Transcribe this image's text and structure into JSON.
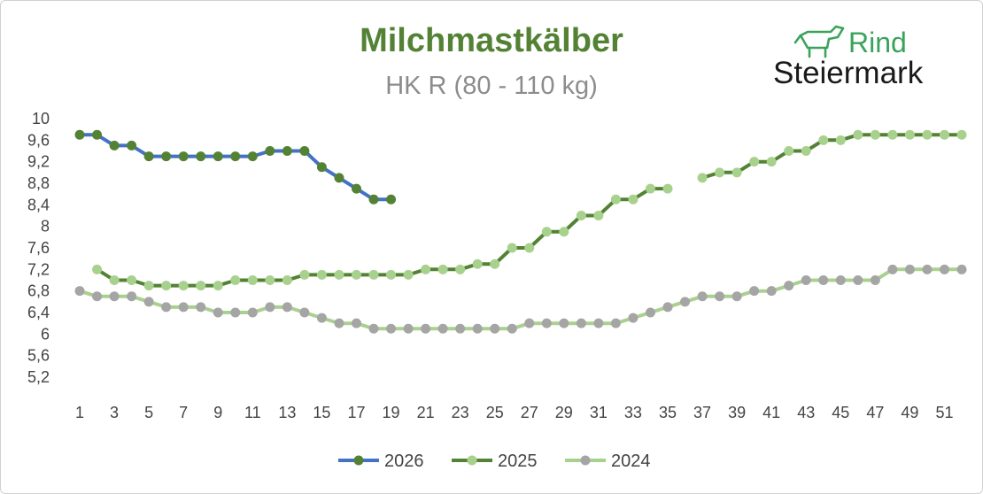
{
  "chart_data": {
    "type": "line",
    "title": "Milchmastkälber",
    "subtitle": "HK R (80 - 110 kg)",
    "xlabel": "",
    "ylabel": "",
    "ylim": [
      5.2,
      10
    ],
    "yticks": [
      "10",
      "9,6",
      "9,2",
      "8,8",
      "8,4",
      "8",
      "7,6",
      "7,2",
      "6,8",
      "6,4",
      "6",
      "5,6",
      "5,2"
    ],
    "xlim": [
      1,
      52
    ],
    "xticks": [
      "1",
      "3",
      "5",
      "7",
      "9",
      "11",
      "13",
      "15",
      "17",
      "19",
      "21",
      "23",
      "25",
      "27",
      "29",
      "31",
      "33",
      "35",
      "37",
      "39",
      "41",
      "43",
      "45",
      "47",
      "49",
      "51"
    ],
    "grid": false,
    "legend_position": "bottom",
    "series": [
      {
        "name": "2026",
        "line_color": "#4472c4",
        "marker_color": "#548235",
        "values": [
          9.7,
          9.7,
          9.5,
          9.5,
          9.3,
          9.3,
          9.3,
          9.3,
          9.3,
          9.3,
          9.3,
          9.4,
          9.4,
          9.4,
          9.1,
          8.9,
          8.7,
          8.5,
          8.5
        ]
      },
      {
        "name": "2025",
        "line_color": "#548235",
        "marker_color": "#a9d18e",
        "values": [
          null,
          7.2,
          7.0,
          7.0,
          6.9,
          6.9,
          6.9,
          6.9,
          6.9,
          7.0,
          7.0,
          7.0,
          7.0,
          7.1,
          7.1,
          7.1,
          7.1,
          7.1,
          7.1,
          7.1,
          7.2,
          7.2,
          7.2,
          7.3,
          7.3,
          7.6,
          7.6,
          7.9,
          7.9,
          8.2,
          8.2,
          8.5,
          8.5,
          8.7,
          8.7,
          null,
          8.9,
          9.0,
          9.0,
          9.2,
          9.2,
          9.4,
          9.4,
          9.6,
          9.6,
          9.7,
          9.7,
          9.7,
          9.7,
          9.7,
          9.7,
          9.7
        ]
      },
      {
        "name": "2024",
        "line_color": "#a9d18e",
        "marker_color": "#a5a5a5",
        "values": [
          6.8,
          6.7,
          6.7,
          6.7,
          6.6,
          6.5,
          6.5,
          6.5,
          6.4,
          6.4,
          6.4,
          6.5,
          6.5,
          6.4,
          6.3,
          6.2,
          6.2,
          6.1,
          6.1,
          6.1,
          6.1,
          6.1,
          6.1,
          6.1,
          6.1,
          6.1,
          6.2,
          6.2,
          6.2,
          6.2,
          6.2,
          6.2,
          6.3,
          6.4,
          6.5,
          6.6,
          6.7,
          6.7,
          6.7,
          6.8,
          6.8,
          6.9,
          7.0,
          7.0,
          7.0,
          7.0,
          7.0,
          7.2,
          7.2,
          7.2,
          7.2,
          7.2
        ]
      }
    ]
  },
  "logo": {
    "line1": "Rind",
    "line2": "Steiermark",
    "icon": "cow-icon",
    "color": "#3aa35b"
  },
  "colors": {
    "title": "#548235",
    "subtitle": "#8c8c8c",
    "axis_text": "#444444"
  }
}
